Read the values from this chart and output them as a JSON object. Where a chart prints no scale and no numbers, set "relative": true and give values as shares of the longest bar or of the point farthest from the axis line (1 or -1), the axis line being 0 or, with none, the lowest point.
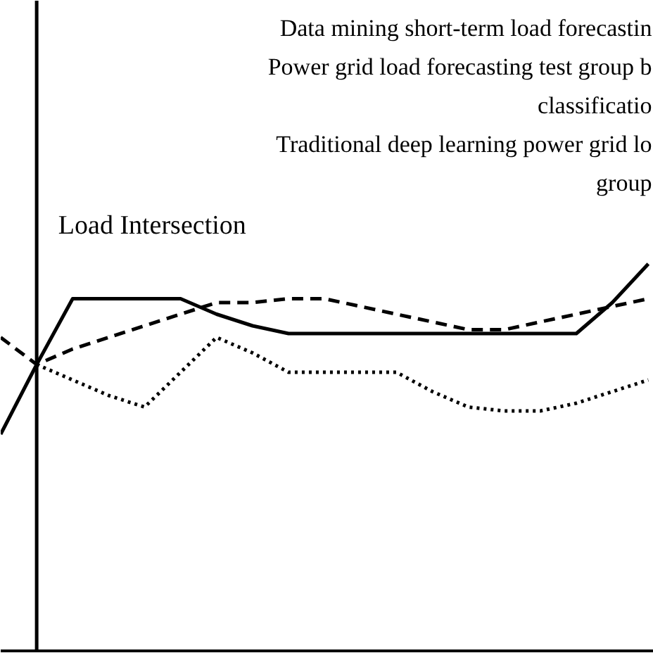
{
  "chart_data": {
    "type": "line",
    "relative": true,
    "categories": [
      null,
      null,
      null,
      null,
      null,
      null,
      null,
      null,
      null,
      null,
      null,
      null,
      null,
      null,
      null,
      null,
      null,
      null,
      null
    ],
    "series": [
      {
        "color": "#000000",
        "line_style": "solid",
        "values": [
          0.56,
          0.74,
          0.91,
          0.91,
          0.91,
          0.91,
          0.87,
          0.84,
          0.82,
          0.82,
          0.82,
          0.82,
          0.82,
          0.82,
          0.82,
          0.82,
          0.82,
          0.9,
          1
        ]
      },
      {
        "color": "#000000",
        "line_style": "dashed",
        "values": [
          0.81,
          0.74,
          0.78,
          0.81,
          0.84,
          0.87,
          0.9,
          0.9,
          0.91,
          0.91,
          0.89,
          0.87,
          0.85,
          0.83,
          0.83,
          0.85,
          0.87,
          0.89,
          0.91
        ]
      },
      {
        "color": "#000000",
        "line_style": "dotted",
        "values": [
          null,
          0.74,
          0.7,
          0.66,
          0.63,
          0.72,
          0.81,
          0.77,
          0.72,
          0.72,
          0.72,
          0.72,
          0.67,
          0.63,
          0.62,
          0.62,
          0.64,
          0.67,
          0.7
        ]
      }
    ],
    "annotations": [
      "Data mining short-term load forecastin",
      "Power grid load forecasting test group b\nclassificatio",
      "Traditional deep learning power grid lo\ngroup",
      "Load Intersection"
    ],
    "grid": false
  }
}
